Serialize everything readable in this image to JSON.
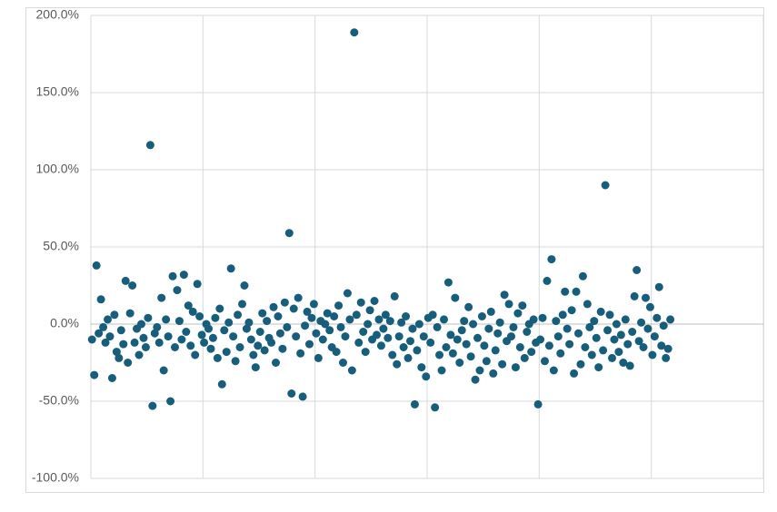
{
  "chart_data": {
    "type": "scatter",
    "color": "#175d7c",
    "grid": true,
    "xlim": [
      0,
      600
    ],
    "xticks": [
      0,
      100,
      200,
      300,
      400,
      500,
      600
    ],
    "ylim": [
      -100,
      200
    ],
    "yticks": [
      {
        "value": -100,
        "label": "-100.0%"
      },
      {
        "value": -50,
        "label": "-50.0%"
      },
      {
        "value": 0,
        "label": "0.0%"
      },
      {
        "value": 50,
        "label": "50.0%"
      },
      {
        "value": 100,
        "label": "100.0%"
      },
      {
        "value": 150,
        "label": "150.0%"
      },
      {
        "value": 200,
        "label": "200.0%"
      }
    ],
    "x": [
      1,
      3,
      5,
      7,
      9,
      11,
      13,
      15,
      17,
      19,
      21,
      23,
      25,
      27,
      29,
      31,
      33,
      35,
      37,
      39,
      41,
      43,
      45,
      47,
      49,
      51,
      53,
      55,
      57,
      59,
      61,
      63,
      65,
      67,
      69,
      71,
      73,
      75,
      77,
      79,
      81,
      83,
      85,
      87,
      89,
      91,
      93,
      95,
      97,
      99,
      101,
      103,
      105,
      107,
      109,
      111,
      113,
      115,
      117,
      119,
      121,
      123,
      125,
      127,
      129,
      131,
      133,
      135,
      137,
      139,
      141,
      143,
      145,
      147,
      149,
      151,
      153,
      155,
      157,
      159,
      161,
      163,
      165,
      167,
      169,
      171,
      173,
      175,
      177,
      179,
      181,
      183,
      185,
      187,
      189,
      191,
      193,
      195,
      197,
      199,
      201,
      203,
      205,
      207,
      209,
      211,
      213,
      215,
      217,
      219,
      221,
      223,
      225,
      227,
      229,
      231,
      233,
      235,
      237,
      239,
      241,
      243,
      245,
      247,
      249,
      251,
      253,
      255,
      257,
      259,
      261,
      263,
      265,
      267,
      269,
      271,
      273,
      275,
      277,
      279,
      281,
      283,
      285,
      287,
      289,
      291,
      293,
      295,
      297,
      299,
      301,
      303,
      305,
      307,
      309,
      311,
      313,
      315,
      317,
      319,
      321,
      323,
      325,
      327,
      329,
      331,
      333,
      335,
      337,
      339,
      341,
      343,
      345,
      347,
      349,
      351,
      353,
      355,
      357,
      359,
      361,
      363,
      365,
      367,
      369,
      371,
      373,
      375,
      377,
      379,
      381,
      383,
      385,
      387,
      389,
      391,
      393,
      395,
      397,
      399,
      401,
      403,
      405,
      407,
      409,
      411,
      413,
      415,
      417,
      419,
      421,
      423,
      425,
      427,
      429,
      431,
      433,
      435,
      437,
      439,
      441,
      443,
      445,
      447,
      449,
      451,
      453,
      455,
      457,
      459,
      461,
      463,
      465,
      467,
      469,
      471,
      473,
      475,
      477,
      479,
      481,
      483,
      485,
      487,
      489,
      491,
      493,
      495,
      497,
      499,
      501,
      503,
      505,
      507,
      509,
      511,
      513,
      515,
      517
    ],
    "values": [
      -10,
      -33,
      38,
      -6,
      16,
      -2,
      -12,
      3,
      -8,
      -35,
      6,
      -18,
      -22,
      -4,
      -13,
      28,
      -25,
      7,
      25,
      -12,
      -3,
      -20,
      0,
      -9,
      -15,
      4,
      116,
      -53,
      -6,
      -2,
      -12,
      17,
      -30,
      3,
      -8,
      -50,
      31,
      -15,
      22,
      2,
      -10,
      32,
      -5,
      12,
      -14,
      8,
      -20,
      26,
      5,
      -7,
      -12,
      0,
      -3,
      -16,
      -9,
      4,
      -22,
      10,
      -39,
      -4,
      -18,
      1,
      36,
      -8,
      -24,
      6,
      -15,
      13,
      25,
      -3,
      1,
      -10,
      -20,
      -28,
      -14,
      -5,
      7,
      -17,
      2,
      -9,
      -12,
      11,
      -25,
      5,
      -6,
      -16,
      14,
      -2,
      59,
      -45,
      10,
      -8,
      17,
      -19,
      -47,
      -1,
      8,
      -13,
      4,
      13,
      -6,
      -22,
      2,
      -10,
      0,
      7,
      -4,
      -15,
      5,
      -18,
      12,
      -2,
      -25,
      -8,
      20,
      3,
      -30,
      189,
      6,
      -12,
      14,
      -5,
      -18,
      0,
      9,
      -10,
      15,
      -7,
      3,
      -14,
      -3,
      6,
      -9,
      2,
      -20,
      18,
      -26,
      -8,
      1,
      -15,
      5,
      -22,
      -11,
      -3,
      -52,
      -17,
      0,
      -28,
      -8,
      -34,
      4,
      -12,
      6,
      -54,
      -2,
      -20,
      -30,
      3,
      -15,
      27,
      -7,
      -19,
      17,
      -10,
      -25,
      -4,
      2,
      -13,
      11,
      -21,
      0,
      -36,
      -9,
      -30,
      5,
      -14,
      -24,
      -3,
      8,
      -32,
      -17,
      -6,
      1,
      -26,
      19,
      -11,
      13,
      -8,
      -2,
      -28,
      7,
      -15,
      12,
      -22,
      -5,
      0,
      -18,
      3,
      -12,
      -52,
      -10,
      4,
      -24,
      28,
      -14,
      42,
      -30,
      2,
      -8,
      -19,
      6,
      21,
      -3,
      -13,
      9,
      -32,
      21,
      -6,
      -26,
      31,
      -15,
      13,
      -2,
      -20,
      2,
      -9,
      -28,
      8,
      -17,
      90,
      -4,
      6,
      -22,
      -10,
      0,
      -18,
      -7,
      -25,
      3,
      -13,
      -27,
      -5,
      18,
      35,
      -11,
      1,
      -15,
      17,
      -3,
      11,
      -20,
      -8,
      4,
      24,
      -14,
      -1,
      -22,
      -16,
      3
    ]
  }
}
